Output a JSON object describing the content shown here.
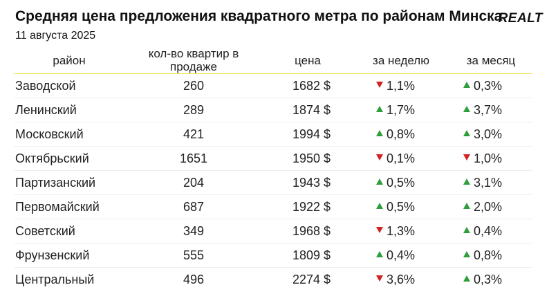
{
  "header": {
    "title": "Средняя цена предложения квадратного метра по районам Минска",
    "subtitle": "11 августа 2025",
    "logo": "REALT"
  },
  "colors": {
    "up": "#2e9e3a",
    "down": "#d32121",
    "header_rule": "#f3e24a"
  },
  "chart_data": {
    "type": "table",
    "columns": [
      "район",
      "кол-во квартир в продаже",
      "цена",
      "за неделю",
      "за месяц"
    ],
    "rows": [
      {
        "district": "Заводской",
        "count": "260",
        "price": "1682 $",
        "week": "1,1%",
        "week_dir": "down",
        "month": "0,3%",
        "month_dir": "up"
      },
      {
        "district": "Ленинский",
        "count": "289",
        "price": "1874 $",
        "week": "1,7%",
        "week_dir": "up",
        "month": "3,7%",
        "month_dir": "up"
      },
      {
        "district": "Московский",
        "count": "421",
        "price": "1994 $",
        "week": "0,8%",
        "week_dir": "up",
        "month": "3,0%",
        "month_dir": "up"
      },
      {
        "district": "Октябрьский",
        "count": "1651",
        "price": "1950 $",
        "week": "0,1%",
        "week_dir": "down",
        "month": "1,0%",
        "month_dir": "down"
      },
      {
        "district": "Партизанский",
        "count": "204",
        "price": "1943 $",
        "week": "0,5%",
        "week_dir": "up",
        "month": "3,1%",
        "month_dir": "up"
      },
      {
        "district": "Первомайский",
        "count": "687",
        "price": "1922 $",
        "week": "0,5%",
        "week_dir": "up",
        "month": "2,0%",
        "month_dir": "up"
      },
      {
        "district": "Советский",
        "count": "349",
        "price": "1968 $",
        "week": "1,3%",
        "week_dir": "down",
        "month": "0,4%",
        "month_dir": "up"
      },
      {
        "district": "Фрунзенский",
        "count": "555",
        "price": "1809 $",
        "week": "0,4%",
        "week_dir": "up",
        "month": "0,8%",
        "month_dir": "up"
      },
      {
        "district": "Центральный",
        "count": "496",
        "price": "2274 $",
        "week": "3,6%",
        "week_dir": "down",
        "month": "0,3%",
        "month_dir": "up"
      }
    ]
  }
}
